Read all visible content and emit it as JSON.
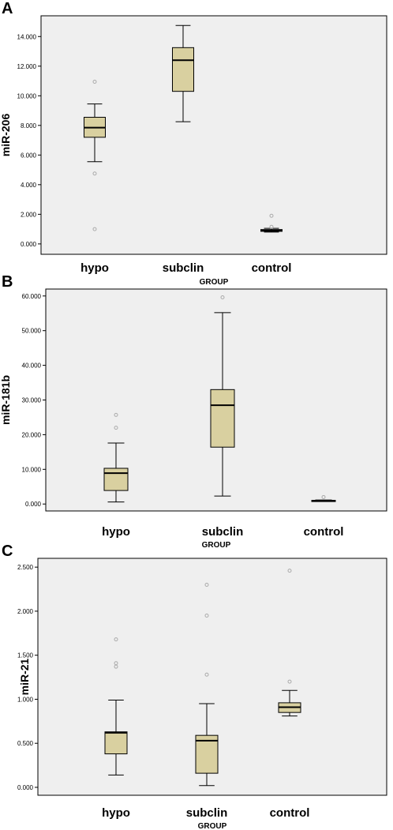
{
  "chart_data": [
    {
      "panel": "A",
      "type": "boxplot",
      "xlabel": "GROUP",
      "ylabel": "miR-206",
      "ylim": [
        -0.7,
        15.4
      ],
      "yticks": [
        0,
        2,
        4,
        6,
        8,
        10,
        12,
        14
      ],
      "ytick_labels": [
        "0.000",
        "2.000",
        "4.000",
        "6.000",
        "8.000",
        "10.000",
        "12.000",
        "14.000"
      ],
      "categories": [
        "hypo",
        "subclin",
        "control"
      ],
      "boxes": [
        {
          "min": 5.55,
          "q1": 7.2,
          "median": 7.85,
          "q3": 8.55,
          "max": 9.45
        },
        {
          "min": 8.25,
          "q1": 10.3,
          "median": 12.4,
          "q3": 13.25,
          "max": 14.75
        },
        {
          "min": 0.8,
          "q1": 0.85,
          "median": 0.9,
          "q3": 0.97,
          "max": 1.05
        }
      ],
      "outliers": [
        [
          10.95,
          4.75,
          1.0
        ],
        [],
        [
          1.9,
          1.15
        ]
      ]
    },
    {
      "panel": "B",
      "type": "boxplot",
      "xlabel": "GROUP",
      "ylabel": "miR-181b",
      "ylim": [
        -2,
        62
      ],
      "yticks": [
        0,
        10,
        20,
        30,
        40,
        50,
        60
      ],
      "ytick_labels": [
        "0.000",
        "10.000",
        "20.000",
        "30.000",
        "40.000",
        "50.000",
        "60.000"
      ],
      "categories": [
        "hypo",
        "subclin",
        "control"
      ],
      "boxes": [
        {
          "min": 0.6,
          "q1": 3.9,
          "median": 8.9,
          "q3": 10.3,
          "max": 17.6
        },
        {
          "min": 2.3,
          "q1": 16.4,
          "median": 28.5,
          "q3": 33.0,
          "max": 55.2
        },
        {
          "min": 0.75,
          "q1": 0.85,
          "median": 0.95,
          "q3": 1.05,
          "max": 1.15
        }
      ],
      "outliers": [
        [
          25.7,
          22.0
        ],
        [
          59.6
        ],
        [
          2.0
        ]
      ]
    },
    {
      "panel": "C",
      "type": "boxplot",
      "xlabel": "GROUP",
      "ylabel": "miR-21",
      "ylim": [
        -0.09,
        2.6
      ],
      "yticks": [
        0,
        0.5,
        1.0,
        1.5,
        2.0,
        2.5
      ],
      "ytick_labels": [
        "0.000",
        "0.500",
        "1.000",
        "1.500",
        "2.000",
        "2.500"
      ],
      "categories": [
        "hypo",
        "subclin",
        "control"
      ],
      "boxes": [
        {
          "min": 0.14,
          "q1": 0.38,
          "median": 0.62,
          "q3": 0.63,
          "max": 0.99
        },
        {
          "min": 0.02,
          "q1": 0.16,
          "median": 0.53,
          "q3": 0.59,
          "max": 0.95
        },
        {
          "min": 0.81,
          "q1": 0.85,
          "median": 0.91,
          "q3": 0.96,
          "max": 1.1
        }
      ],
      "outliers": [
        [
          1.68,
          1.41,
          1.37
        ],
        [
          2.3,
          1.95,
          1.28
        ],
        [
          2.46,
          1.2
        ]
      ]
    }
  ]
}
